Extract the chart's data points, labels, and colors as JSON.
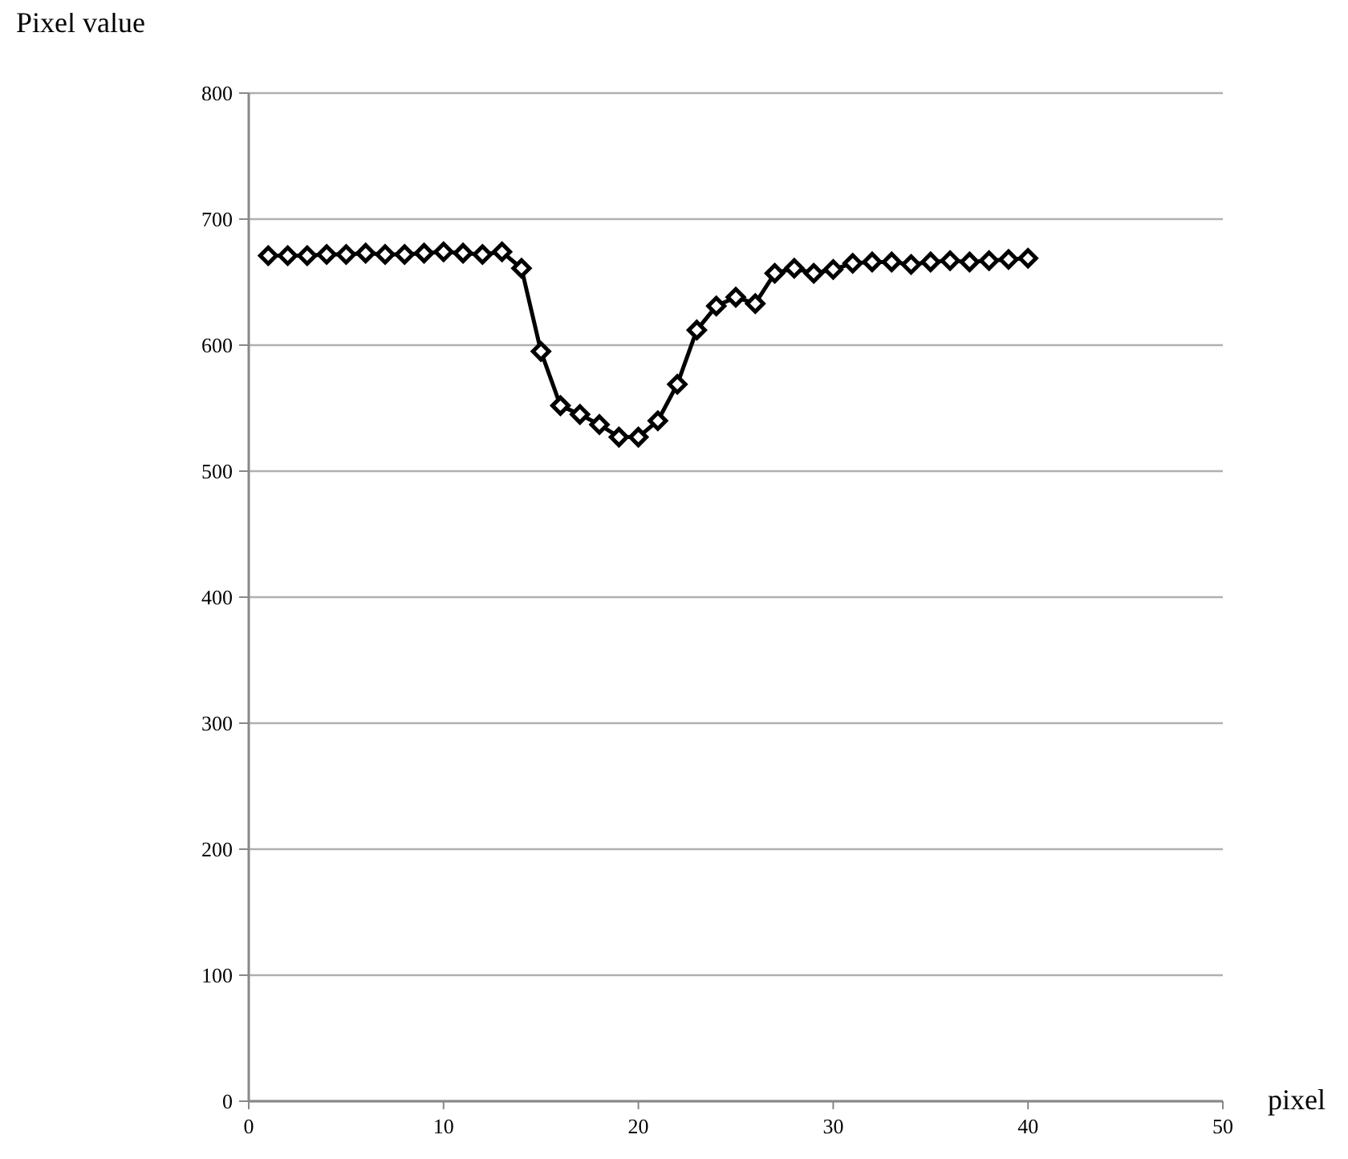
{
  "chart_data": {
    "type": "line",
    "xlabel": "pixel",
    "ylabel": "Pixel value",
    "x": [
      1,
      2,
      3,
      4,
      5,
      6,
      7,
      8,
      9,
      10,
      11,
      12,
      13,
      14,
      15,
      16,
      17,
      18,
      19,
      20,
      21,
      22,
      23,
      24,
      25,
      26,
      27,
      28,
      29,
      30,
      31,
      32,
      33,
      34,
      35,
      36,
      37,
      38,
      39,
      40
    ],
    "series": [
      {
        "color": "#000000",
        "values": [
          671,
          671,
          671,
          672,
          672,
          673,
          672,
          672,
          673,
          674,
          673,
          672,
          674,
          661,
          595,
          552,
          545,
          537,
          527,
          527,
          540,
          569,
          612,
          631,
          638,
          633,
          657,
          661,
          657,
          660,
          665,
          666,
          666,
          664,
          666,
          667,
          666,
          667,
          668,
          669
        ]
      }
    ],
    "xlim": [
      0,
      50
    ],
    "xticks": [
      0,
      10,
      20,
      30,
      40,
      50
    ],
    "ylim": [
      0,
      800
    ],
    "yticks": [
      0,
      100,
      200,
      300,
      400,
      500,
      600,
      700,
      800
    ],
    "grid": "y",
    "marker": "diamond",
    "line_style": "solid"
  }
}
